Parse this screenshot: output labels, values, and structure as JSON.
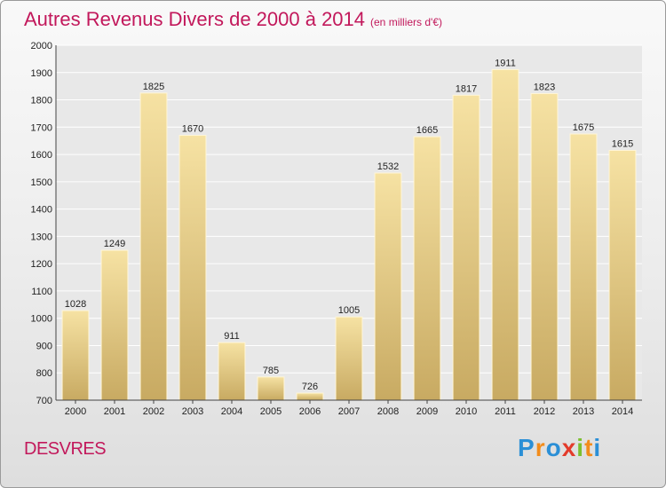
{
  "chart_data": {
    "type": "bar",
    "title": "Autres Revenus Divers de 2000 à 2014",
    "subtitle": "(en milliers d'€)",
    "categories": [
      "2000",
      "2001",
      "2002",
      "2003",
      "2004",
      "2005",
      "2006",
      "2007",
      "2008",
      "2009",
      "2010",
      "2011",
      "2012",
      "2013",
      "2014"
    ],
    "values": [
      1028,
      1249,
      1825,
      1670,
      911,
      785,
      726,
      1005,
      1532,
      1665,
      1817,
      1911,
      1823,
      1675,
      1615
    ],
    "ylim": [
      700,
      2000
    ],
    "yticks": [
      700,
      800,
      900,
      1000,
      1100,
      1200,
      1300,
      1400,
      1500,
      1600,
      1700,
      1800,
      1900,
      2000
    ],
    "grid": true,
    "bar_color": "#e8cf85"
  },
  "footer": {
    "commune": "DESVRES",
    "logo": {
      "letters": [
        "P",
        "r",
        "o",
        "x",
        "i",
        "t",
        "i"
      ],
      "colors": [
        "#2b8fd6",
        "#f28c1b",
        "#2b8fd6",
        "#e33b2b",
        "#7cbf2f",
        "#f28c1b",
        "#2b8fd6"
      ]
    }
  }
}
